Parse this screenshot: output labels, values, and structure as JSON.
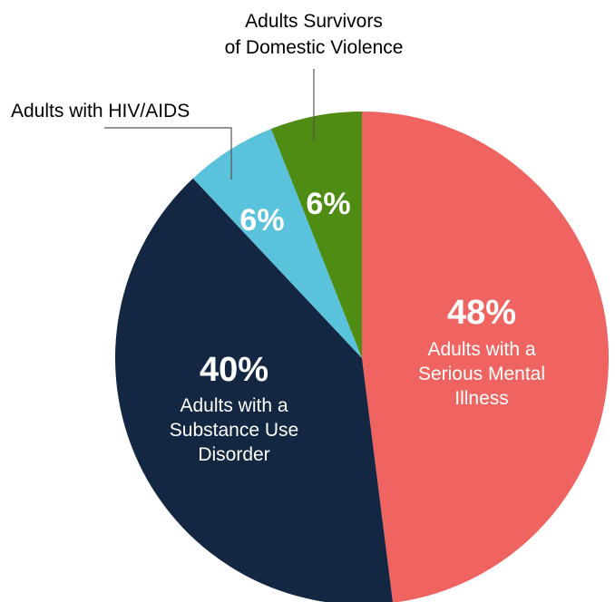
{
  "chart_data": {
    "type": "pie",
    "title": "",
    "colors": {
      "serious_mental_illness": "#EF6461",
      "substance_use_disorder": "#132742",
      "hiv_aids": "#5BC2DC",
      "domestic_violence": "#4F8C14"
    },
    "slices": [
      {
        "key": "serious_mental_illness",
        "value": 48,
        "pct_label": "48%",
        "label_lines": [
          "Adults with a",
          "Serious Mental",
          "Illness"
        ]
      },
      {
        "key": "substance_use_disorder",
        "value": 40,
        "pct_label": "40%",
        "label_lines": [
          "Adults with a",
          "Substance Use",
          "Disorder"
        ]
      },
      {
        "key": "hiv_aids",
        "value": 6,
        "pct_label": "6%",
        "label_lines": [
          "Adults with HIV/AIDS"
        ]
      },
      {
        "key": "domestic_violence",
        "value": 6,
        "pct_label": "6%",
        "label_lines": [
          "Adults Survivors",
          "of Domestic Violence"
        ]
      }
    ]
  }
}
